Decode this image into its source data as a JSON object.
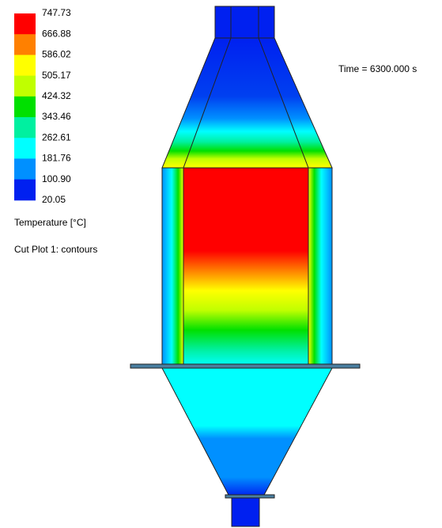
{
  "legend": {
    "labels": [
      "747.73",
      "666.88",
      "586.02",
      "505.17",
      "424.32",
      "343.46",
      "262.61",
      "181.76",
      "100.90",
      "20.05"
    ],
    "colors": [
      "#ff0000",
      "#ff8000",
      "#ffff00",
      "#c0ff00",
      "#00e000",
      "#00f0a0",
      "#00ffff",
      "#0090ff",
      "#0020f0"
    ],
    "quantity": "Temperature [°C]",
    "plot": "Cut Plot 1: contours"
  },
  "time": "Time = 6300.000 s"
}
